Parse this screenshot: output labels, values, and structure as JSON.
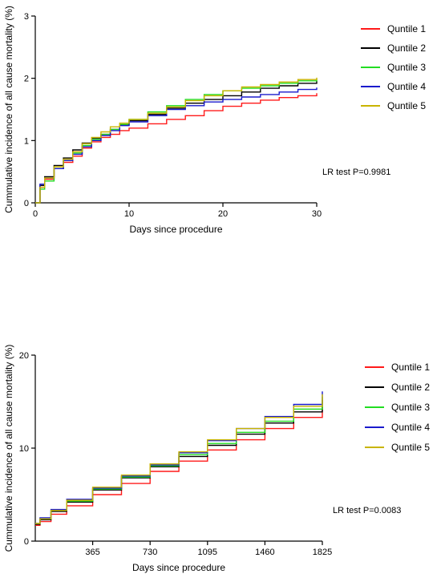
{
  "chart_data": [
    {
      "type": "line",
      "xlabel": "Days  since procedure",
      "ylabel": "Cummulative incidence of all cause mortality (%)",
      "xlim": [
        0,
        30
      ],
      "ylim": [
        0,
        3
      ],
      "xticks": [
        0,
        10,
        20,
        30
      ],
      "yticks": [
        0,
        1,
        2,
        3
      ],
      "annotation": "LR test P=0.9981",
      "legend_position": "right",
      "grid": false,
      "series": [
        {
          "name": "Quntile 1",
          "color": "#ff1a1a",
          "x": [
            0,
            0.5,
            1,
            2,
            3,
            4,
            5,
            6,
            7,
            8,
            9,
            10,
            12,
            14,
            16,
            18,
            20,
            22,
            24,
            26,
            28,
            30
          ],
          "y": [
            0,
            0.25,
            0.38,
            0.55,
            0.65,
            0.75,
            0.88,
            0.98,
            1.05,
            1.1,
            1.16,
            1.2,
            1.27,
            1.34,
            1.4,
            1.48,
            1.55,
            1.6,
            1.65,
            1.69,
            1.72,
            1.76
          ]
        },
        {
          "name": "Quntile 2",
          "color": "#000000",
          "x": [
            0,
            0.5,
            1,
            2,
            3,
            4,
            5,
            6,
            7,
            8,
            9,
            10,
            12,
            14,
            16,
            18,
            20,
            22,
            24,
            26,
            28,
            30
          ],
          "y": [
            0,
            0.28,
            0.42,
            0.6,
            0.72,
            0.85,
            0.96,
            1.04,
            1.1,
            1.18,
            1.25,
            1.32,
            1.42,
            1.52,
            1.6,
            1.66,
            1.72,
            1.78,
            1.84,
            1.88,
            1.92,
            1.96
          ]
        },
        {
          "name": "Quntile 3",
          "color": "#22dd22",
          "x": [
            0,
            0.5,
            1,
            2,
            3,
            4,
            5,
            6,
            7,
            8,
            9,
            10,
            12,
            14,
            16,
            18,
            20,
            22,
            24,
            26,
            28,
            30
          ],
          "y": [
            0,
            0.22,
            0.35,
            0.55,
            0.68,
            0.8,
            0.92,
            1.02,
            1.1,
            1.18,
            1.26,
            1.34,
            1.46,
            1.56,
            1.66,
            1.74,
            1.8,
            1.84,
            1.88,
            1.92,
            1.96,
            1.99
          ]
        },
        {
          "name": "Quntile 4",
          "color": "#1a1acc",
          "x": [
            0,
            0.5,
            1,
            2,
            3,
            4,
            5,
            6,
            7,
            8,
            9,
            10,
            12,
            14,
            16,
            18,
            20,
            22,
            24,
            26,
            28,
            30
          ],
          "y": [
            0,
            0.3,
            0.4,
            0.55,
            0.68,
            0.78,
            0.9,
            1.0,
            1.08,
            1.16,
            1.24,
            1.3,
            1.4,
            1.5,
            1.56,
            1.62,
            1.66,
            1.7,
            1.74,
            1.78,
            1.82,
            1.85
          ]
        },
        {
          "name": "Quntile 5",
          "color": "#c8b400",
          "x": [
            0,
            0.5,
            1,
            2,
            3,
            4,
            5,
            6,
            7,
            8,
            9,
            10,
            12,
            14,
            16,
            18,
            20,
            22,
            24,
            26,
            28,
            30
          ],
          "y": [
            0,
            0.25,
            0.4,
            0.58,
            0.7,
            0.82,
            0.95,
            1.05,
            1.14,
            1.22,
            1.28,
            1.34,
            1.44,
            1.54,
            1.64,
            1.72,
            1.8,
            1.86,
            1.9,
            1.94,
            1.98,
            2.01
          ]
        }
      ]
    },
    {
      "type": "line",
      "xlabel": "Days since procedure",
      "ylabel": "Cummulative incidence of all cause mortality (%)",
      "xlim": [
        0,
        1825
      ],
      "ylim": [
        0,
        20
      ],
      "xticks": [
        365,
        730,
        1095,
        1460,
        1825
      ],
      "yticks": [
        0,
        10,
        20
      ],
      "annotation": "LR test P=0.0083",
      "legend_position": "right",
      "grid": false,
      "series": [
        {
          "name": "Quntile 1",
          "color": "#ff1a1a",
          "x": [
            0,
            30,
            100,
            200,
            365,
            548,
            730,
            913,
            1095,
            1278,
            1460,
            1643,
            1825
          ],
          "y": [
            1.7,
            2.1,
            2.9,
            3.8,
            5.0,
            6.2,
            7.5,
            8.6,
            9.8,
            10.9,
            12.1,
            13.3,
            14.5
          ]
        },
        {
          "name": "Quntile 2",
          "color": "#000000",
          "x": [
            0,
            30,
            100,
            200,
            365,
            548,
            730,
            913,
            1095,
            1278,
            1460,
            1643,
            1825
          ],
          "y": [
            1.8,
            2.3,
            3.2,
            4.2,
            5.5,
            6.8,
            8.0,
            9.1,
            10.3,
            11.5,
            12.7,
            13.9,
            15.2
          ]
        },
        {
          "name": "Quntile 3",
          "color": "#22dd22",
          "x": [
            0,
            30,
            100,
            200,
            365,
            548,
            730,
            913,
            1095,
            1278,
            1460,
            1643,
            1825
          ],
          "y": [
            1.9,
            2.4,
            3.3,
            4.3,
            5.6,
            6.9,
            8.1,
            9.3,
            10.5,
            11.7,
            12.9,
            14.2,
            15.5
          ]
        },
        {
          "name": "Quntile 4",
          "color": "#1a1acc",
          "x": [
            0,
            30,
            100,
            200,
            365,
            548,
            730,
            913,
            1095,
            1278,
            1460,
            1643,
            1825
          ],
          "y": [
            1.9,
            2.5,
            3.4,
            4.5,
            5.7,
            7.0,
            8.2,
            9.5,
            10.8,
            12.1,
            13.4,
            14.7,
            16.1
          ]
        },
        {
          "name": "Quntile 5",
          "color": "#c8b400",
          "x": [
            0,
            30,
            100,
            200,
            365,
            548,
            730,
            913,
            1095,
            1278,
            1460,
            1643,
            1825
          ],
          "y": [
            1.9,
            2.4,
            3.3,
            4.4,
            5.8,
            7.1,
            8.3,
            9.6,
            10.9,
            12.1,
            13.3,
            14.5,
            15.8
          ]
        }
      ]
    }
  ]
}
